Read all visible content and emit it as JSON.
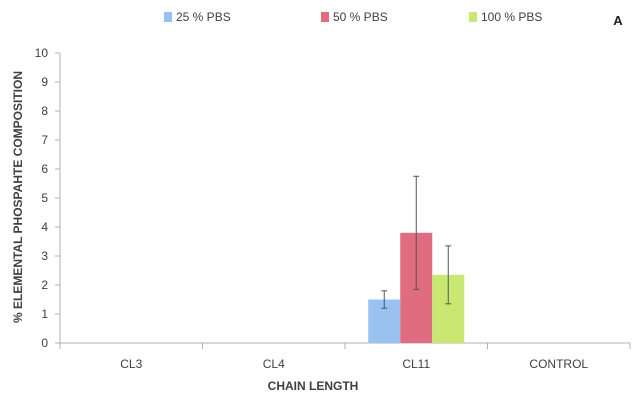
{
  "chart_data": {
    "type": "bar",
    "panel_label": "A",
    "xlabel": "CHAIN LENGTH",
    "ylabel": "% ELEMENTAL PHOSPAHTE COMPOSITION",
    "categories": [
      "CL3",
      "CL4",
      "CL11",
      "CONTROL"
    ],
    "ylim": [
      0,
      10
    ],
    "yticks": [
      0,
      1,
      2,
      3,
      4,
      5,
      6,
      7,
      8,
      9,
      10
    ],
    "grid": false,
    "legend_position": "top",
    "series": [
      {
        "name": "25 % PBS",
        "color": "#99c2f0",
        "values": [
          0,
          0,
          1.5,
          0
        ],
        "errors": [
          0,
          0,
          0.3,
          0
        ]
      },
      {
        "name": "50 % PBS",
        "color": "#e06c7f",
        "values": [
          0,
          0,
          3.8,
          0
        ],
        "errors": [
          0,
          0,
          1.95,
          0
        ]
      },
      {
        "name": "100 % PBS",
        "color": "#c8e872",
        "values": [
          0,
          0,
          2.35,
          0
        ],
        "errors": [
          0,
          0,
          1.0,
          0
        ]
      }
    ]
  }
}
